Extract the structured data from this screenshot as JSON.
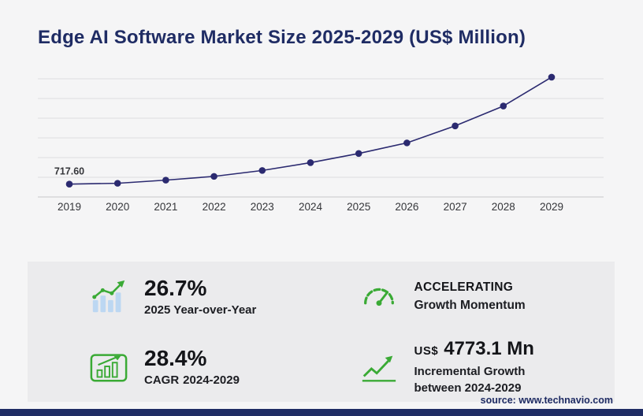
{
  "chart_data": {
    "type": "line",
    "title": "Edge AI Software Market Size 2025-2029 (US$ Million)",
    "categories": [
      "2019",
      "2020",
      "2021",
      "2022",
      "2023",
      "2024",
      "2025",
      "2026",
      "2027",
      "2028",
      "2029"
    ],
    "values": [
      717.6,
      765,
      940,
      1150,
      1480,
      1917,
      2429,
      3020,
      3970,
      5080,
      6690
    ],
    "first_point_label": "717.60",
    "xlabel": "",
    "ylabel": "",
    "ylim": [
      0,
      6600
    ],
    "grid": true,
    "legend": "none",
    "line_color": "#2b2a70"
  },
  "stats": {
    "yoy": {
      "value": "26.7%",
      "label": "2025 Year-over-Year"
    },
    "momentum": {
      "line1": "ACCELERATING",
      "line2": "Growth Momentum"
    },
    "cagr": {
      "value": "28.4%",
      "label_prefix": "CAGR",
      "label_range": "2024-2029"
    },
    "incremental": {
      "currency": "US$",
      "value": "4773.1 Mn",
      "line1": "Incremental Growth",
      "line2": "between 2024-2029"
    }
  },
  "source": "source: www.technavio.com",
  "colors": {
    "navy": "#1f2c64",
    "green": "#3aaa35",
    "bar_blue": "#bcd7f2",
    "panel_gray": "#ebebed",
    "grid_gray": "#dddde0"
  }
}
